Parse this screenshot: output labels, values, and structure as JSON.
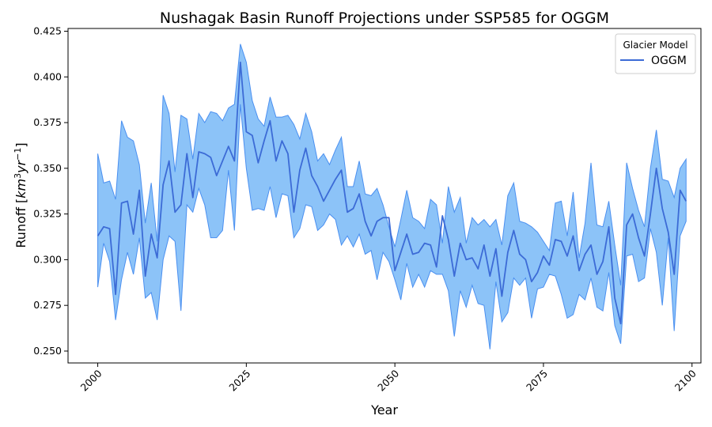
{
  "chart_data": {
    "type": "line",
    "title": "Nushagak Basin Runoff Projections under SSP585 for OGGM",
    "xlabel": "Year",
    "ylabel": "Runoff [km³yr⁻¹]",
    "xlim": [
      1995,
      2101.5
    ],
    "ylim": [
      0.2435,
      0.4265
    ],
    "x_ticks": [
      2000,
      2025,
      2050,
      2075,
      2100
    ],
    "y_ticks": [
      0.25,
      0.275,
      0.3,
      0.325,
      0.35,
      0.375,
      0.4,
      0.425
    ],
    "y_tick_labels": [
      "0.250",
      "0.275",
      "0.300",
      "0.325",
      "0.350",
      "0.375",
      "0.400",
      "0.425"
    ],
    "grid": false,
    "legend": {
      "title": "Glacier Model",
      "position": "top-right"
    },
    "colors": {
      "line": "#3c6bd6",
      "band_fill": "#8cc3f8",
      "band_edge": "#4a8ff0"
    },
    "x": [
      2000,
      2001,
      2002,
      2003,
      2004,
      2005,
      2006,
      2007,
      2008,
      2009,
      2010,
      2011,
      2012,
      2013,
      2014,
      2015,
      2016,
      2017,
      2018,
      2019,
      2020,
      2021,
      2022,
      2023,
      2024,
      2025,
      2026,
      2027,
      2028,
      2029,
      2030,
      2031,
      2032,
      2033,
      2034,
      2035,
      2036,
      2037,
      2038,
      2039,
      2040,
      2041,
      2042,
      2043,
      2044,
      2045,
      2046,
      2047,
      2048,
      2049,
      2050,
      2051,
      2052,
      2053,
      2054,
      2055,
      2056,
      2057,
      2058,
      2059,
      2060,
      2061,
      2062,
      2063,
      2064,
      2065,
      2066,
      2067,
      2068,
      2069,
      2070,
      2071,
      2072,
      2073,
      2074,
      2075,
      2076,
      2077,
      2078,
      2079,
      2080,
      2081,
      2082,
      2083,
      2084,
      2085,
      2086,
      2087,
      2088,
      2089,
      2090,
      2091,
      2092,
      2093,
      2094,
      2095,
      2096,
      2097,
      2098,
      2099
    ],
    "series": [
      {
        "name": "OGGM",
        "values": [
          0.313,
          0.318,
          0.317,
          0.281,
          0.331,
          0.332,
          0.314,
          0.338,
          0.291,
          0.314,
          0.301,
          0.341,
          0.354,
          0.326,
          0.33,
          0.358,
          0.334,
          0.359,
          0.358,
          0.356,
          0.346,
          0.354,
          0.362,
          0.354,
          0.408,
          0.37,
          0.368,
          0.353,
          0.365,
          0.376,
          0.354,
          0.365,
          0.358,
          0.326,
          0.349,
          0.361,
          0.346,
          0.34,
          0.332,
          0.338,
          0.344,
          0.349,
          0.326,
          0.328,
          0.336,
          0.321,
          0.313,
          0.321,
          0.323,
          0.323,
          0.294,
          0.304,
          0.314,
          0.303,
          0.304,
          0.309,
          0.308,
          0.296,
          0.324,
          0.311,
          0.291,
          0.309,
          0.3,
          0.301,
          0.295,
          0.308,
          0.291,
          0.306,
          0.28,
          0.304,
          0.316,
          0.303,
          0.3,
          0.288,
          0.293,
          0.302,
          0.297,
          0.311,
          0.31,
          0.302,
          0.313,
          0.294,
          0.303,
          0.308,
          0.292,
          0.299,
          0.318,
          0.279,
          0.265,
          0.319,
          0.325,
          0.312,
          0.302,
          0.325,
          0.35,
          0.328,
          0.315,
          0.292,
          0.338,
          0.332
        ],
        "lower": [
          0.285,
          0.309,
          0.299,
          0.267,
          0.289,
          0.304,
          0.292,
          0.312,
          0.279,
          0.282,
          0.267,
          0.3,
          0.313,
          0.31,
          0.272,
          0.33,
          0.326,
          0.339,
          0.33,
          0.312,
          0.312,
          0.316,
          0.349,
          0.316,
          0.385,
          0.35,
          0.327,
          0.328,
          0.327,
          0.34,
          0.323,
          0.336,
          0.335,
          0.312,
          0.317,
          0.33,
          0.329,
          0.316,
          0.319,
          0.325,
          0.322,
          0.308,
          0.313,
          0.307,
          0.314,
          0.303,
          0.305,
          0.289,
          0.304,
          0.299,
          0.289,
          0.278,
          0.298,
          0.285,
          0.292,
          0.285,
          0.294,
          0.292,
          0.292,
          0.283,
          0.258,
          0.283,
          0.274,
          0.286,
          0.276,
          0.275,
          0.251,
          0.288,
          0.266,
          0.271,
          0.29,
          0.286,
          0.29,
          0.268,
          0.284,
          0.285,
          0.292,
          0.291,
          0.281,
          0.268,
          0.27,
          0.281,
          0.278,
          0.29,
          0.274,
          0.272,
          0.293,
          0.264,
          0.254,
          0.302,
          0.303,
          0.288,
          0.29,
          0.317,
          0.304,
          0.275,
          0.312,
          0.261,
          0.313,
          0.321
        ],
        "upper": [
          0.358,
          0.342,
          0.343,
          0.333,
          0.376,
          0.367,
          0.365,
          0.352,
          0.32,
          0.342,
          0.31,
          0.39,
          0.38,
          0.348,
          0.379,
          0.377,
          0.355,
          0.38,
          0.375,
          0.381,
          0.38,
          0.376,
          0.383,
          0.385,
          0.418,
          0.408,
          0.387,
          0.377,
          0.373,
          0.389,
          0.378,
          0.378,
          0.379,
          0.374,
          0.366,
          0.38,
          0.37,
          0.354,
          0.358,
          0.352,
          0.36,
          0.367,
          0.34,
          0.34,
          0.354,
          0.336,
          0.335,
          0.339,
          0.33,
          0.318,
          0.307,
          0.322,
          0.338,
          0.323,
          0.321,
          0.317,
          0.333,
          0.33,
          0.309,
          0.34,
          0.326,
          0.334,
          0.309,
          0.323,
          0.319,
          0.322,
          0.318,
          0.322,
          0.308,
          0.335,
          0.342,
          0.321,
          0.32,
          0.318,
          0.315,
          0.31,
          0.305,
          0.331,
          0.332,
          0.313,
          0.337,
          0.301,
          0.32,
          0.353,
          0.319,
          0.318,
          0.332,
          0.308,
          0.286,
          0.353,
          0.339,
          0.327,
          0.318,
          0.35,
          0.371,
          0.344,
          0.343,
          0.334,
          0.35,
          0.355
        ]
      }
    ]
  }
}
